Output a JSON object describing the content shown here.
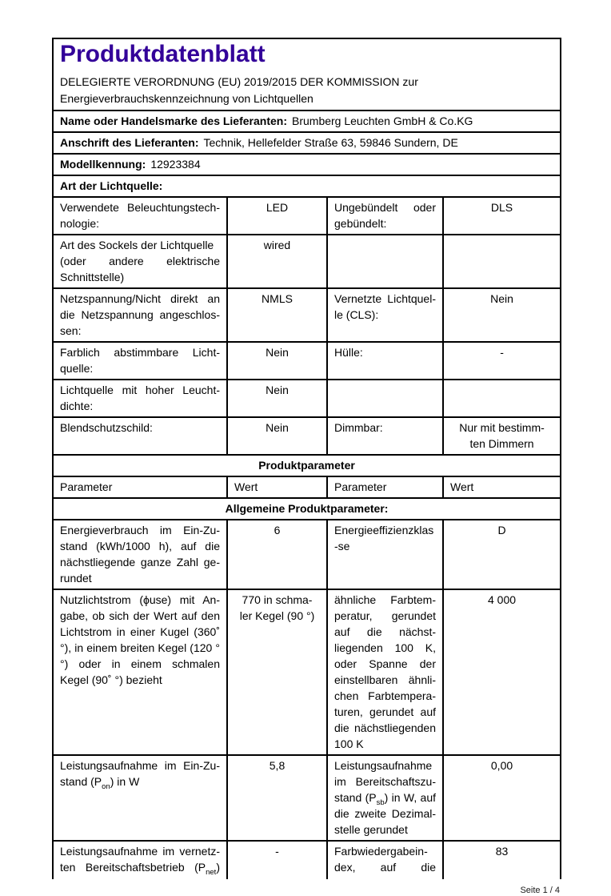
{
  "colors": {
    "title_accent": "#330099",
    "border": "#000000"
  },
  "header": {
    "title": "Produktdatenblatt",
    "regulation": "DELEGIERTE VERORDNUNG (EU) 2019/2015 DER KOMMISSION zur\nEnergieverbrauchskennzeichnung von Lichtquellen"
  },
  "supplier": {
    "name_label": "Name oder Handelsmarke des Lieferanten:",
    "name_value": "Brumberg Leuchten GmbH & Co.KG",
    "address_label": "Anschrift des Lieferanten:",
    "address_value": "Technik, Hellefelder Straße 63, 59846 Sundern, DE",
    "model_label": "Modellkennung:",
    "model_value": "12923384",
    "light_source_type_label": "Art der Lichtquelle:"
  },
  "light_source_table": {
    "rows": [
      {
        "param1": "Verwendete Beleuchtungstech-nologie:",
        "value1": "LED",
        "param2": "Ungebündelt oder gebündelt:",
        "value2": "DLS"
      },
      {
        "param1": "Art des Sockels der Lichtquelle\n(oder andere elektrische Schnittstelle)",
        "value1": "wired",
        "param2": "",
        "value2": ""
      },
      {
        "param1": "Netzspannung/Nicht direkt an die Netzspannung angeschlos-sen:",
        "value1": "NMLS",
        "param2": "Vernetzte Lichtquel-le (CLS):",
        "value2": "Nein"
      },
      {
        "param1": "Farblich abstimmbare Licht-quelle:",
        "value1": "Nein",
        "param2": "Hülle:",
        "value2": "-"
      },
      {
        "param1": "Lichtquelle mit hoher Leucht-dichte:",
        "value1": "Nein",
        "param2": "",
        "value2": ""
      },
      {
        "param1": "Blendschutzschild:",
        "value1": "Nein",
        "param2": "Dimmbar:",
        "value2": "Nur mit bestimm-\nten Dimmern"
      }
    ]
  },
  "product_parameters": {
    "section_title": "Produktparameter",
    "column_headers": [
      "Parameter",
      "Wert",
      "Parameter",
      "Wert"
    ],
    "subsection_title": "Allgemeine Produktparameter:",
    "rows": [
      {
        "param1": "Energieverbrauch im Ein-Zu-stand (kWh/1000 h), auf die nächstliegende ganze Zahl ge-rundet",
        "value1": "6",
        "param2": "Energieeffizienzklas-se",
        "value2": "D"
      },
      {
        "param1": "Nutzlichtstrom (ϕuse) mit An-gabe, ob sich der Wert auf den Lichtstrom in einer Kugel (360˚ °), in einem breiten Kegel (120 °°) oder in einem schmalen Kegel (90˚ °) bezieht",
        "value1": "770 in schma-\nler Kegel (90 °)",
        "param2": "ähnliche Farbtem-peratur, gerundet auf die nächst-liegenden 100 K, oder Spanne der einstellbaren ähnli-chen Farbtempera-turen, gerundet auf die nächstliegenden 100 K",
        "value2": "4 000"
      },
      {
        "param1": "Leistungsaufnahme im Ein-Zu-stand (P~on~) in W",
        "value1": "5,8",
        "param2": "Leistungsaufnahme im Bereitschaftszu-stand (P~sb~) in W, auf die zweite Dezimal-stelle gerundet",
        "value2": "0,00"
      },
      {
        "param1": "Leistungsaufnahme im vernetz-ten Bereitschaftsbetrieb (P~net~)",
        "value1": "-",
        "param2": "Farbwiedergabein-dex, auf die",
        "value2": "83"
      }
    ]
  },
  "page": {
    "footer": "Seite 1 / 4"
  }
}
